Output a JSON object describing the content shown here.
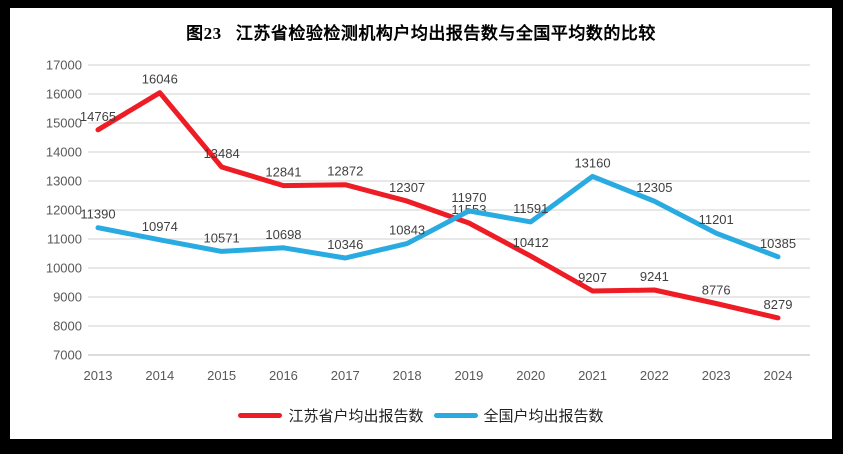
{
  "title": "图23   江苏省检验检测机构户均出报告数与全国平均数的比较",
  "colors": {
    "jiangsu_line": "#EE1C25",
    "national_line": "#29ABE2",
    "gridline": "#DADADA",
    "axis_line": "#C6C6C6",
    "tick_label": "#595959",
    "data_label": "#404040",
    "frame_border": "#000000",
    "background": "#FFFFFF"
  },
  "chart_data": {
    "type": "line",
    "title": "图23 江苏省检验检测机构户均出报告数与全国平均数的比较",
    "categories": [
      "2013",
      "2014",
      "2015",
      "2016",
      "2017",
      "2018",
      "2019",
      "2020",
      "2021",
      "2022",
      "2023",
      "2024"
    ],
    "series": [
      {
        "name": "江苏省户均出报告数",
        "color": "#EE1C25",
        "values": [
          14765,
          16046,
          13484,
          12841,
          12872,
          12307,
          11553,
          10412,
          9207,
          9241,
          8776,
          8279
        ]
      },
      {
        "name": "全国户均出报告数",
        "color": "#29ABE2",
        "values": [
          11390,
          10974,
          10571,
          10698,
          10346,
          10843,
          11970,
          11591,
          13160,
          12305,
          11201,
          10385
        ]
      }
    ],
    "xlabel": "",
    "ylabel": "",
    "ylim": [
      7000,
      17000
    ],
    "ytick_step": 1000,
    "yticks": [
      7000,
      8000,
      9000,
      10000,
      11000,
      12000,
      13000,
      14000,
      15000,
      16000,
      17000
    ],
    "grid": "horizontal",
    "show_data_labels": true,
    "legend_position": "bottom"
  }
}
